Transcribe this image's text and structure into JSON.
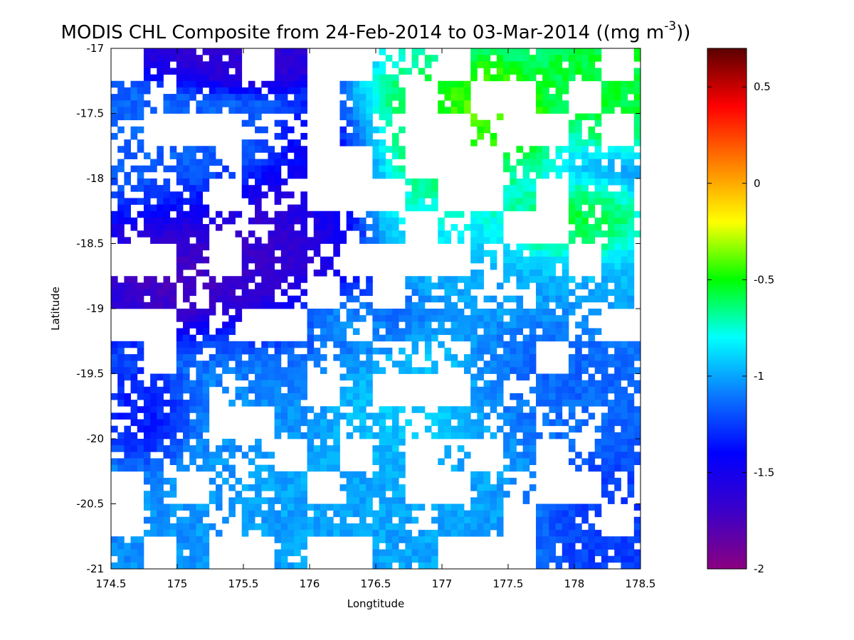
{
  "chart_data": {
    "type": "heatmap",
    "title_main": "MODIS CHL Composite from 24-Feb-2014 to 03-Mar-2014 ((mg m",
    "title_sup": "-3",
    "title_tail": "))",
    "xlabel": "Longtitude",
    "ylabel": "Latitude",
    "xlim": [
      174.5,
      178.5
    ],
    "ylim": [
      -21,
      -17
    ],
    "x_ticks": [
      "174.5",
      "175",
      "175.5",
      "176",
      "176.5",
      "177",
      "177.5",
      "178",
      "178.5"
    ],
    "y_ticks": [
      "-17",
      "-17.5",
      "-18",
      "-18.5",
      "-19",
      "-19.5",
      "-20",
      "-20.5",
      "-21"
    ],
    "colorbar": {
      "range": [
        -2,
        0.7
      ],
      "ticks": [
        "0.5",
        "0",
        "-0.5",
        "-1",
        "-1.5",
        "-2"
      ],
      "palette": [
        "#8a0080",
        "#3c00c8",
        "#0000ff",
        "#0a78ff",
        "#00ffff",
        "#00ff00",
        "#ffff00",
        "#ff8000",
        "#ff0000",
        "#5a0000"
      ]
    },
    "grid": false,
    "value_scale": "log10 chlorophyll",
    "regions": [
      {
        "lon": 175.6,
        "lat": -18.7,
        "value": -1.7,
        "rx": 0.9,
        "ry": 0.5
      },
      {
        "lon": 175.1,
        "lat": -18.9,
        "value": -1.8,
        "rx": 0.3,
        "ry": 0.2
      },
      {
        "lon": 176.2,
        "lat": -18.0,
        "value": -1.5,
        "rx": 0.3,
        "ry": 0.4
      },
      {
        "lon": 175.4,
        "lat": -17.1,
        "value": -1.65,
        "rx": 0.5,
        "ry": 0.15
      },
      {
        "lon": 174.9,
        "lat": -17.8,
        "value": -1.15,
        "rx": 0.6,
        "ry": 0.4
      },
      {
        "lon": 176.9,
        "lat": -17.9,
        "value": -0.6,
        "rx": 0.5,
        "ry": 0.5
      },
      {
        "lon": 177.3,
        "lat": -17.5,
        "value": -0.35,
        "rx": 0.3,
        "ry": 0.25
      },
      {
        "lon": 178.3,
        "lat": -17.2,
        "value": -0.55,
        "rx": 0.4,
        "ry": 0.3
      },
      {
        "lon": 177.9,
        "lat": -18.4,
        "value": -0.45,
        "rx": 0.4,
        "ry": 0.2
      },
      {
        "lon": 177.4,
        "lat": -18.7,
        "value": -0.95,
        "rx": 0.9,
        "ry": 0.4
      },
      {
        "lon": 176.8,
        "lat": -19.7,
        "value": -0.9,
        "rx": 0.5,
        "ry": 0.4
      },
      {
        "lon": 177.8,
        "lat": -19.5,
        "value": -1.15,
        "rx": 0.5,
        "ry": 0.5
      },
      {
        "lon": 176.2,
        "lat": -19.05,
        "value": -0.85,
        "rx": 0.3,
        "ry": 0.2
      },
      {
        "lon": 175.5,
        "lat": -19.5,
        "value": -1.05,
        "rx": 0.7,
        "ry": 0.4
      },
      {
        "lon": 174.8,
        "lat": -19.7,
        "value": -1.4,
        "rx": 0.25,
        "ry": 0.25
      },
      {
        "lon": 177.0,
        "lat": -20.5,
        "value": -1.0,
        "rx": 0.9,
        "ry": 0.5
      },
      {
        "lon": 178.1,
        "lat": -20.6,
        "value": -1.3,
        "rx": 0.4,
        "ry": 0.4
      },
      {
        "lon": 176.8,
        "lat": -18.4,
        "value": -0.75,
        "rx": 0.3,
        "ry": 0.3
      }
    ]
  }
}
